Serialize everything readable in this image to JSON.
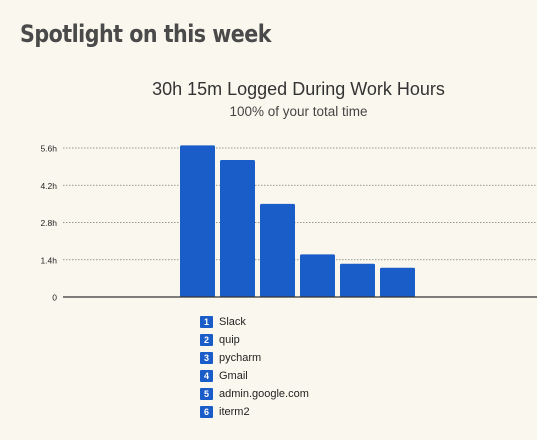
{
  "section": {
    "heading": "Spotlight on this week"
  },
  "chart_data": {
    "type": "bar",
    "title": "30h 15m Logged During Work Hours",
    "subtitle": "100% of your total time",
    "categories": [
      "Slack",
      "quip",
      "pycharm",
      "Gmail",
      "admin.google.com",
      "iterm2"
    ],
    "values": [
      5.7,
      5.15,
      3.5,
      1.6,
      1.25,
      1.1
    ],
    "y_ticks": [
      0,
      1.4,
      2.8,
      4.2,
      5.6
    ],
    "y_tick_labels": [
      "0",
      "1.4h",
      "2.8h",
      "4.2h",
      "5.6h"
    ],
    "ylim": [
      0,
      5.6
    ],
    "grid": true,
    "legend_position": "bottom",
    "bar_color": "#1a5cc8"
  },
  "legend": [
    {
      "index": "1",
      "label": "Slack"
    },
    {
      "index": "2",
      "label": "quip"
    },
    {
      "index": "3",
      "label": "pycharm"
    },
    {
      "index": "4",
      "label": "Gmail"
    },
    {
      "index": "5",
      "label": "admin.google.com"
    },
    {
      "index": "6",
      "label": "iterm2"
    }
  ]
}
